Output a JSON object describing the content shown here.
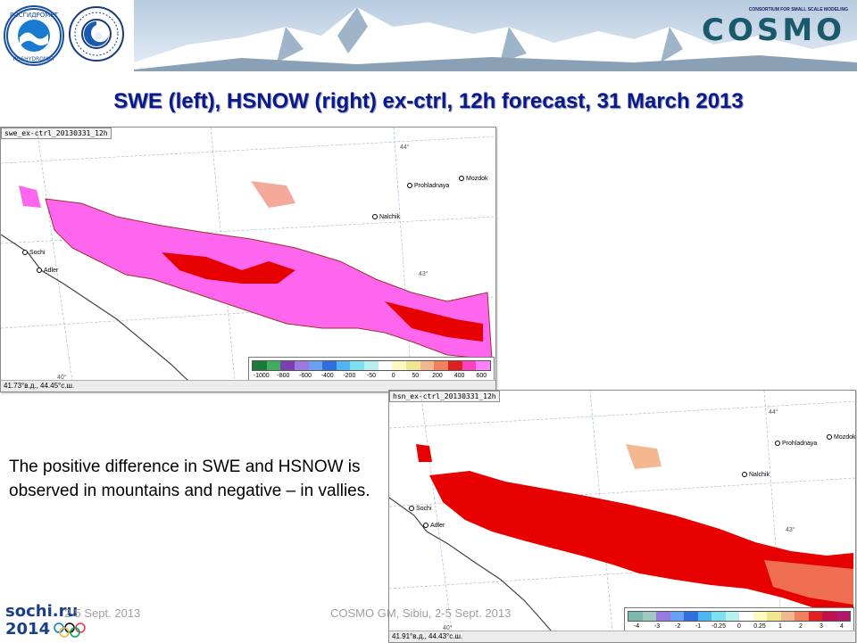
{
  "slide": {
    "title": "SWE (left), HSNOW (right) ex-ctrl, 12h forecast, 31 March 2013",
    "note": "The positive difference in SWE and HSNOW is observed in mountains and negative – in vallies.",
    "footer_date": "2-5 Sept. 2013",
    "footer_center": "COSMO GM, Sibiu, 2-5 Sept. 2013",
    "footer_logo_top": "sochi.ru",
    "footer_logo_bottom": "2014"
  },
  "header": {
    "logo1_top": "РОСГИДРОМЕТ",
    "logo1_bottom": "ROSHYDROMET",
    "cosmo_word": "COSMO",
    "cosmo_caption": "CONSORTIUM FOR SMALL SCALE MODELING",
    "mountain_colors": {
      "sky": "#c9d9ea",
      "snow": "#ffffff",
      "shade": "#9fb4c8"
    }
  },
  "left_map": {
    "window_title": "swe_ex-ctrl_20130331_12h",
    "status": "41.73°в.д., 44.45°с.ш.",
    "cities": [
      "Mozdok",
      "Prohladnaya",
      "Nalchik",
      "Sochi",
      "Adler"
    ],
    "lat_labels": [
      "44°",
      "43°",
      "40°"
    ],
    "legend_ticks": [
      "-1000",
      "-800",
      "-600",
      "-400",
      "-200",
      "-50",
      "0",
      "50",
      "200",
      "400",
      "600"
    ],
    "legend_colors": [
      "#1b7c3a",
      "#3fae5f",
      "#7a3fb0",
      "#9a7ae0",
      "#6aa0f0",
      "#2f6fe0",
      "#4fb6f0",
      "#7fe0f0",
      "#b8f0f0",
      "#ffffff",
      "#fffac0",
      "#f0e890",
      "#f4b890",
      "#f08060",
      "#e02020",
      "#ff40c0",
      "#ff80ff"
    ]
  },
  "right_map": {
    "window_title": "hsn_ex-ctrl_20130331_12h",
    "status": "41.91°в.д., 44.43°с.ш.",
    "cities": [
      "Mozdok",
      "Prohladnaya",
      "Nalchik",
      "Sochi",
      "Adler"
    ],
    "lat_labels": [
      "44°",
      "43°",
      "40°"
    ],
    "legend_ticks": [
      "-4",
      "-3",
      "-2",
      "-1",
      "-0.25",
      "0",
      "0.25",
      "1",
      "2",
      "3",
      "4"
    ],
    "legend_colors": [
      "#7ab8b0",
      "#a0c8c0",
      "#9a7ae0",
      "#6aa0f0",
      "#2f6fe0",
      "#4fb6f0",
      "#7fe0f0",
      "#b8f0f0",
      "#ffffff",
      "#fffac0",
      "#f0e890",
      "#f4b890",
      "#f08060",
      "#e02020",
      "#c01050",
      "#b01870"
    ]
  },
  "colors": {
    "title": "#0a1a8c",
    "snow_pink": "#ff66ee",
    "snow_red": "#e60000",
    "coast": "#444444",
    "footer": "#a0a0a0"
  }
}
